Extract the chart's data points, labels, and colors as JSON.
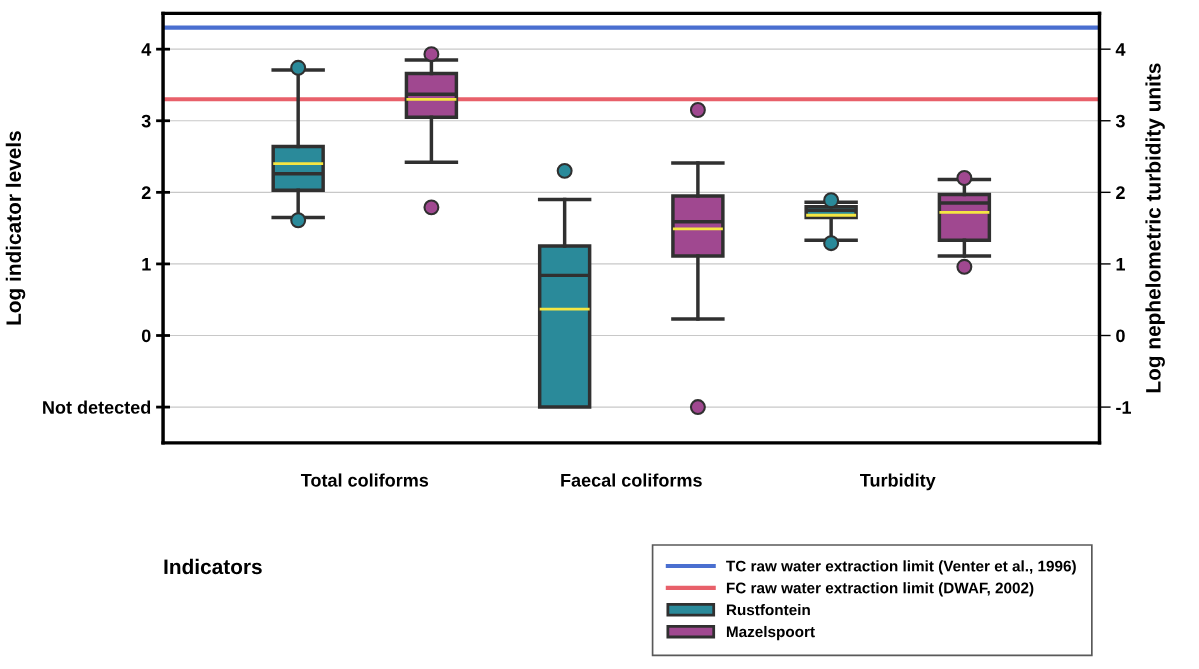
{
  "chart_data": {
    "type": "box",
    "ylabel": "Log indicator levels",
    "y2label": "Log nephelometric turbidity units",
    "xlabel": "Indicators",
    "categories": [
      "Total coliforms",
      "Faecal coliforms",
      "Turbidity"
    ],
    "ylim": [
      -1.5,
      4.5
    ],
    "yticks": [
      {
        "value": -1,
        "label": "Not detected"
      },
      0,
      1,
      2,
      3,
      4
    ],
    "y2lim": [
      -1.5,
      4.5
    ],
    "y2ticks": [
      -1,
      0,
      1,
      2,
      3,
      4
    ],
    "grid": true,
    "legend": "bottom right",
    "marker": "circle",
    "ref_lines": [
      {
        "axis": "y",
        "value": 4.3,
        "label": "TC raw water extraction limit (Venter et al., 1996)",
        "color": "#4a6fd0"
      },
      {
        "axis": "y",
        "value": 3.3,
        "label": "FC raw water extraction limit (DWAF, 2002)",
        "color": "#e8606a"
      }
    ],
    "series": [
      {
        "name": "Rustfontein",
        "color": "#2a8a9a",
        "boxes": [
          {
            "low": 1.65,
            "q1": 2.03,
            "median": 2.26,
            "q3": 2.64,
            "high": 3.71,
            "mean": 2.4,
            "outliers": [
              3.74,
              1.61
            ]
          },
          {
            "low": -1.0,
            "q1": -1.0,
            "median": 0.84,
            "q3": 1.25,
            "high": 1.9,
            "mean": 0.37,
            "outliers": [
              2.3
            ]
          },
          {
            "low": 1.33,
            "q1": 1.65,
            "median": 1.75,
            "q3": 1.8,
            "high": 1.86,
            "mean": 1.68,
            "outliers": [
              1.89,
              1.29
            ]
          }
        ]
      },
      {
        "name": "Mazelspoort",
        "color": "#a04890",
        "boxes": [
          {
            "low": 2.42,
            "q1": 3.05,
            "median": 3.37,
            "q3": 3.66,
            "high": 3.85,
            "mean": 3.3,
            "outliers": [
              3.93,
              1.79
            ]
          },
          {
            "low": 0.23,
            "q1": 1.11,
            "median": 1.59,
            "q3": 1.95,
            "high": 2.41,
            "mean": 1.49,
            "outliers": [
              3.15,
              -1.0
            ]
          },
          {
            "low": 1.11,
            "q1": 1.33,
            "median": 1.85,
            "q3": 1.97,
            "high": 2.18,
            "mean": 1.72,
            "outliers": [
              2.2,
              0.96
            ]
          }
        ]
      }
    ]
  }
}
